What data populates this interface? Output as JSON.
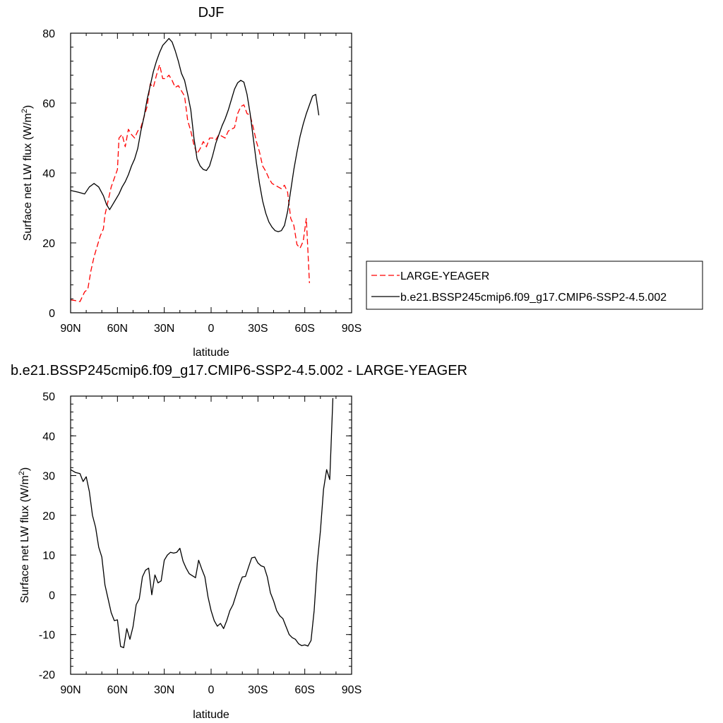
{
  "chart_data": [
    {
      "type": "line",
      "title": "DJF",
      "xlabel": "latitude",
      "ylabel": "Surface net LW flux (W/m",
      "ylabel_sup": "2",
      "ylabel_end": ")",
      "xlim": [
        90,
        -90
      ],
      "ylim": [
        0,
        80
      ],
      "xticks": [
        90,
        60,
        30,
        0,
        -30,
        -60,
        -90
      ],
      "xtick_labels": [
        "90N",
        "60N",
        "30N",
        "0",
        "30S",
        "60S",
        "90S"
      ],
      "yticks": [
        0,
        20,
        40,
        60,
        80
      ],
      "ytick_labels": [
        "0",
        "20",
        "40",
        "60",
        "80"
      ],
      "legend_position": "right",
      "series": [
        {
          "name": "LARGE-YEAGER",
          "color": "#ff0000",
          "dash": "dashed",
          "x": [
            90,
            87,
            84,
            81,
            79,
            77,
            75,
            73,
            71,
            69,
            68,
            66,
            64,
            62,
            60,
            59,
            57,
            55,
            53,
            51,
            49,
            47,
            45,
            43,
            41,
            39,
            37,
            35,
            33,
            31,
            29,
            27,
            25,
            23,
            21,
            19,
            17,
            15,
            13,
            11,
            9,
            7,
            5,
            3,
            1,
            -1,
            -3,
            -5,
            -7,
            -9,
            -11,
            -13,
            -15,
            -17,
            -19,
            -21,
            -23,
            -25,
            -27,
            -29,
            -31,
            -33,
            -35,
            -37,
            -39,
            -41,
            -43,
            -45,
            -47,
            -49,
            -51,
            -53,
            -55,
            -57,
            -59,
            -61,
            -63,
            -65,
            -67,
            -69,
            -71,
            -73,
            -75
          ],
          "y": [
            3.7,
            3.5,
            3.2,
            6.0,
            6.7,
            12,
            16,
            19,
            22,
            24,
            28,
            32,
            36,
            38.5,
            41,
            50,
            51,
            47.5,
            52.5,
            51,
            50,
            52,
            53,
            56,
            59,
            65.5,
            64.5,
            68,
            71,
            67,
            67,
            68,
            66.5,
            64.5,
            65,
            63.5,
            62,
            55,
            52,
            48,
            45.5,
            47,
            49,
            47.5,
            50,
            50,
            49.5,
            51,
            50.5,
            50,
            52,
            52.5,
            53,
            57,
            59,
            59.5,
            57,
            56.5,
            53,
            49,
            46,
            42,
            40.5,
            38.5,
            37,
            36.5,
            36,
            35.5,
            36.5,
            34.5,
            27,
            25,
            19.5,
            18.5,
            20.5,
            27,
            8.5,
            null,
            null,
            null,
            null,
            null,
            null
          ]
        },
        {
          "name": "b.e21.BSSP245cmip6.f09_g17.CMIP6-SSP2-4.5.002",
          "color": "#000000",
          "dash": "solid",
          "x": [
            90,
            85,
            81,
            78,
            75,
            72,
            69,
            67,
            65,
            63,
            61,
            59,
            57,
            55,
            53,
            51,
            49,
            47,
            45,
            43,
            41,
            39,
            37,
            35,
            33,
            31,
            29,
            27,
            25,
            23,
            21,
            19,
            17,
            15,
            13,
            11,
            9,
            7,
            5,
            3,
            1,
            -1,
            -3,
            -5,
            -7,
            -9,
            -11,
            -13,
            -15,
            -17,
            -19,
            -21,
            -23,
            -25,
            -27,
            -29,
            -31,
            -33,
            -35,
            -37,
            -39,
            -41,
            -43,
            -45,
            -47,
            -49,
            -51,
            -53,
            -55,
            -57,
            -59,
            -61,
            -63,
            -65,
            -67,
            -69,
            -71,
            -73,
            -75,
            -77,
            -79,
            -81,
            -83,
            -85,
            -87,
            -89
          ],
          "y": [
            35,
            34.5,
            34,
            36,
            37,
            36,
            33.5,
            31,
            29.5,
            31,
            32.5,
            34,
            36,
            37.5,
            39.5,
            42,
            44,
            47,
            52,
            56,
            61,
            65,
            69,
            72,
            74.5,
            76.5,
            77.5,
            78.5,
            77.5,
            75,
            72,
            68.5,
            66.5,
            62.5,
            58,
            50,
            44,
            42,
            41,
            40.7,
            42,
            45,
            48.5,
            51,
            53.5,
            55.5,
            58,
            61,
            64,
            65.8,
            66.5,
            66,
            62.5,
            57,
            50,
            43,
            37,
            32,
            28.5,
            26,
            24.5,
            23.5,
            23.2,
            23.5,
            25,
            29,
            35,
            41,
            46,
            50.5,
            54,
            57,
            59.5,
            62,
            62.5,
            56.5,
            null,
            null,
            null,
            null,
            null,
            null,
            null,
            null,
            null,
            null
          ]
        }
      ]
    },
    {
      "type": "line",
      "title": "b.e21.BSSP245cmip6.f09_g17.CMIP6-SSP2-4.5.002 - LARGE-YEAGER",
      "xlabel": "latitude",
      "ylabel": "Surface net LW flux (W/m",
      "ylabel_sup": "2",
      "ylabel_end": ")",
      "xlim": [
        90,
        -90
      ],
      "ylim": [
        -20,
        50
      ],
      "xticks": [
        90,
        60,
        30,
        0,
        -30,
        -60,
        -90
      ],
      "xtick_labels": [
        "90N",
        "60N",
        "30N",
        "0",
        "30S",
        "60S",
        "90S"
      ],
      "yticks": [
        -20,
        -10,
        0,
        10,
        20,
        30,
        40,
        50
      ],
      "ytick_labels": [
        "-20",
        "-10",
        "0",
        "10",
        "20",
        "30",
        "40",
        "50"
      ],
      "series": [
        {
          "color": "#000000",
          "dash": "solid",
          "x": [
            90,
            87,
            84,
            82,
            80,
            78,
            76,
            74,
            72,
            70,
            68,
            66,
            64,
            62,
            60,
            58,
            56,
            54,
            52,
            50,
            48,
            46,
            44,
            42,
            40,
            38,
            36,
            34,
            32,
            30,
            28,
            26,
            24,
            22,
            20,
            18,
            16,
            14,
            12,
            10,
            8,
            6,
            4,
            2,
            0,
            -2,
            -4,
            -6,
            -8,
            -10,
            -12,
            -14,
            -16,
            -18,
            -20,
            -22,
            -24,
            -26,
            -28,
            -30,
            -32,
            -34,
            -36,
            -38,
            -40,
            -42,
            -44,
            -46,
            -48,
            -50,
            -52,
            -54,
            -56,
            -58,
            -60,
            -62,
            -64,
            -66,
            -68,
            -70,
            -72,
            -74,
            -76,
            -78
          ],
          "y": [
            31.5,
            30.8,
            30.5,
            28.5,
            29.7,
            26.0,
            20.0,
            17.0,
            12.0,
            9.5,
            2.5,
            -1.0,
            -4.5,
            -6.5,
            -6.3,
            -13.0,
            -13.3,
            -8.5,
            -11.2,
            -8.0,
            -2.5,
            -1.0,
            4.5,
            6.2,
            6.7,
            0.0,
            5.0,
            3.0,
            3.5,
            8.7,
            10.0,
            10.7,
            10.5,
            10.7,
            11.7,
            8.5,
            6.7,
            5.3,
            4.8,
            4.3,
            8.7,
            6.5,
            4.5,
            -0.5,
            -4.0,
            -6.5,
            -7.9,
            -7.2,
            -8.5,
            -6.5,
            -4.0,
            -2.5,
            0.0,
            2.5,
            4.5,
            4.6,
            7.0,
            9.3,
            9.5,
            8.0,
            7.3,
            7.0,
            4.5,
            0.5,
            -1.5,
            -4.0,
            -5.3,
            -6.0,
            -8.0,
            -10.0,
            -10.8,
            -11.2,
            -12.3,
            -12.8,
            -12.6,
            -12.9,
            -11.5,
            -4.0,
            8.0,
            16.0,
            26.5,
            31.5,
            29.0,
            49.5
          ]
        }
      ]
    }
  ]
}
